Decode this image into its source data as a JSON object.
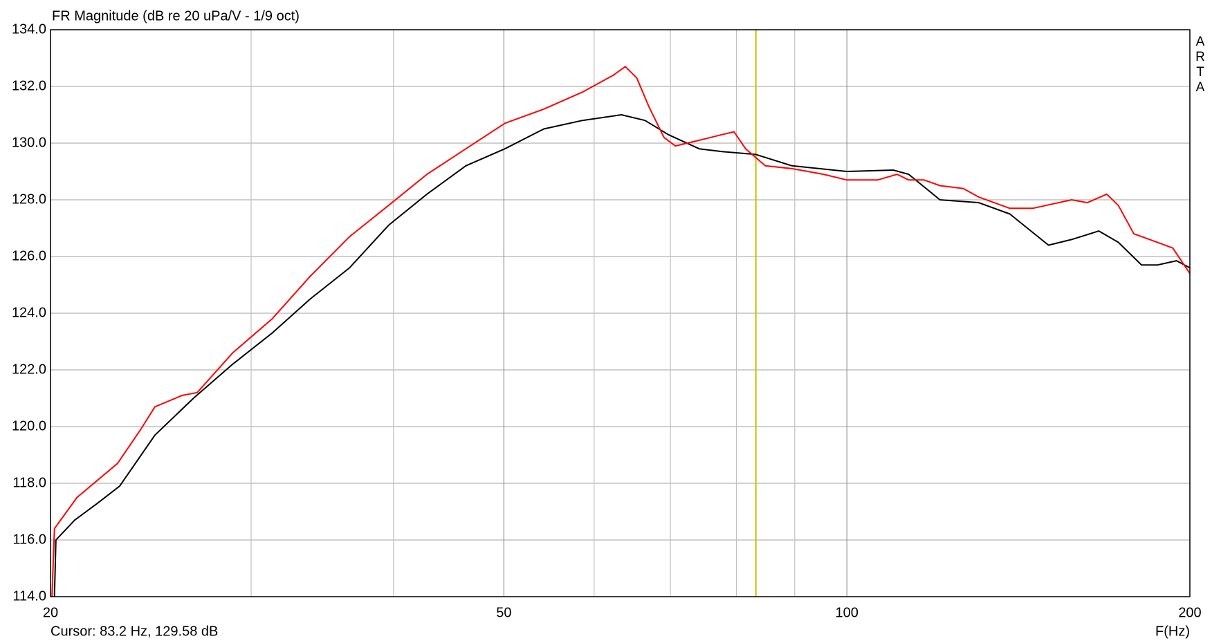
{
  "chart_data": {
    "type": "line",
    "title": "FR Magnitude (dB re 20 uPa/V - 1/9 oct)",
    "x_label": "F(Hz)",
    "watermark": "ARTA",
    "cursor_text": "Cursor: 83.2 Hz, 129.58 dB",
    "cursor_x": 83.2,
    "cursor_color": "#c8c000",
    "x_log": true,
    "grid": true,
    "xlim": [
      20,
      200
    ],
    "xticks": [
      20,
      50,
      100,
      200
    ],
    "xminor": [
      30,
      40,
      60,
      70,
      80,
      90
    ],
    "ylim": [
      114,
      134
    ],
    "yticks": [
      {
        "value": 114,
        "label": "114.0"
      },
      {
        "value": 116,
        "label": "116.0"
      },
      {
        "value": 118,
        "label": "118.0"
      },
      {
        "value": 120,
        "label": "120.0"
      },
      {
        "value": 122,
        "label": "122.0"
      },
      {
        "value": 124,
        "label": "124.0"
      },
      {
        "value": 126,
        "label": "126.0"
      },
      {
        "value": 128,
        "label": "128.0"
      },
      {
        "value": 130,
        "label": "130.0"
      },
      {
        "value": 132,
        "label": "132.0"
      },
      {
        "value": 134,
        "label": "134.0"
      }
    ],
    "series": [
      {
        "color": "#000000",
        "x": [
          20.16,
          20.22,
          21.0,
          22.0,
          23.0,
          24.7,
          26.7,
          28.9,
          31.3,
          33.8,
          36.6,
          39.6,
          42.8,
          46.3,
          50.1,
          54.2,
          58.6,
          63.4,
          66.5,
          69.7,
          74.2,
          77.7,
          83.2,
          89.5,
          100.0,
          109.8,
          113.3,
          120.7,
          130.5,
          139.0,
          150.3,
          157.5,
          166.4,
          173.1,
          181.4,
          187.3,
          194.7,
          200
        ],
        "values": [
          114.0,
          116.0,
          116.7,
          117.3,
          117.9,
          119.7,
          121.0,
          122.2,
          123.3,
          124.5,
          125.6,
          127.1,
          128.2,
          129.2,
          129.8,
          130.5,
          130.8,
          131.0,
          130.8,
          130.3,
          129.8,
          129.7,
          129.6,
          129.2,
          129.0,
          129.05,
          128.9,
          128.0,
          127.9,
          127.5,
          126.4,
          126.6,
          126.9,
          126.5,
          125.7,
          125.7,
          125.85,
          125.6
        ]
      },
      {
        "color": "#ff0000",
        "x": [
          20.06,
          20.16,
          21.1,
          22.9,
          24.0,
          24.7,
          26.1,
          26.9,
          28.9,
          31.3,
          33.8,
          36.6,
          39.6,
          42.8,
          46.3,
          50.1,
          54.2,
          58.6,
          62.4,
          63.9,
          65.4,
          67.0,
          69.1,
          70.7,
          74.2,
          77.7,
          79.6,
          81.5,
          84.8,
          89.5,
          95.4,
          100.0,
          106.4,
          110.7,
          113.3,
          116.9,
          120.7,
          126.5,
          130.5,
          139.0,
          145.6,
          157.5,
          162.6,
          169.1,
          173.1,
          178.6,
          184.4,
          193.2,
          200
        ],
        "values": [
          114.0,
          116.4,
          117.5,
          118.7,
          119.9,
          120.7,
          121.1,
          121.2,
          122.6,
          123.8,
          125.3,
          126.7,
          127.8,
          128.9,
          129.8,
          130.7,
          131.2,
          131.8,
          132.4,
          132.7,
          132.3,
          131.3,
          130.2,
          129.9,
          130.1,
          130.3,
          130.4,
          129.8,
          129.2,
          129.1,
          128.9,
          128.7,
          128.7,
          128.9,
          128.7,
          128.7,
          128.5,
          128.4,
          128.1,
          127.7,
          127.7,
          128.0,
          127.9,
          128.2,
          127.8,
          126.8,
          126.6,
          126.3,
          125.4
        ]
      }
    ]
  }
}
